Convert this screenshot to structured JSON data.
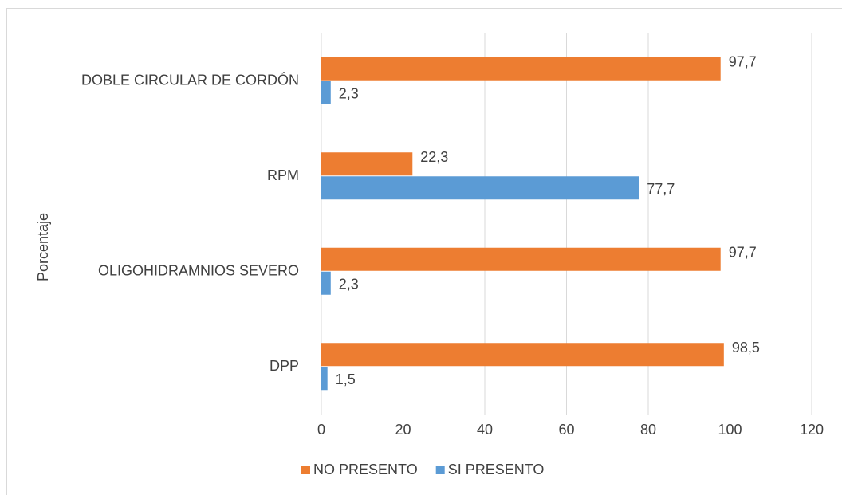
{
  "chart_data": {
    "type": "hbar",
    "axis_label": "Porcentaje",
    "categories": [
      "DOBLE CIRCULAR DE CORDÓN",
      "RPM",
      "OLIGOHIDRAMNIOS SEVERO",
      "DPP"
    ],
    "series": [
      {
        "name": "NO PRESENTO",
        "color": "#ed7d31",
        "values": [
          97.7,
          22.3,
          97.7,
          98.5
        ],
        "value_labels": [
          "97,7",
          "22,3",
          "97,7",
          "98,5"
        ]
      },
      {
        "name": "SI PRESENTO",
        "color": "#5b9bd5",
        "values": [
          2.3,
          77.7,
          2.3,
          1.5
        ],
        "value_labels": [
          "2,3",
          "77,7",
          "2,3",
          "1,5"
        ]
      }
    ],
    "xlim": [
      0,
      120
    ],
    "xticks": [
      0,
      20,
      40,
      60,
      80,
      100,
      120
    ],
    "grid": true,
    "legend": "bottom"
  }
}
